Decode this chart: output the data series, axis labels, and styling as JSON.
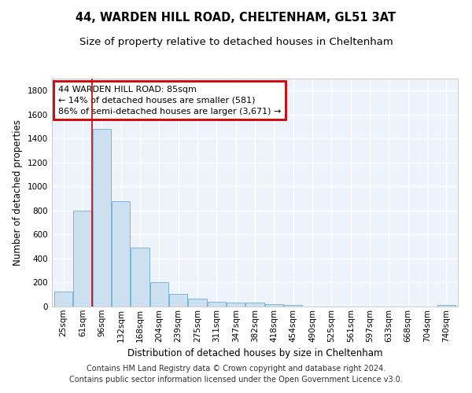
{
  "title1": "44, WARDEN HILL ROAD, CHELTENHAM, GL51 3AT",
  "title2": "Size of property relative to detached houses in Cheltenham",
  "xlabel": "Distribution of detached houses by size in Cheltenham",
  "ylabel": "Number of detached properties",
  "categories": [
    "25sqm",
    "61sqm",
    "96sqm",
    "132sqm",
    "168sqm",
    "204sqm",
    "239sqm",
    "275sqm",
    "311sqm",
    "347sqm",
    "382sqm",
    "418sqm",
    "454sqm",
    "490sqm",
    "525sqm",
    "561sqm",
    "597sqm",
    "633sqm",
    "668sqm",
    "704sqm",
    "740sqm"
  ],
  "values": [
    125,
    800,
    1480,
    880,
    490,
    205,
    105,
    65,
    40,
    35,
    30,
    22,
    15,
    0,
    0,
    0,
    0,
    0,
    0,
    0,
    15
  ],
  "bar_color": "#cce0f0",
  "bar_edge_color": "#6aaed6",
  "annotation_text": "44 WARDEN HILL ROAD: 85sqm\n← 14% of detached houses are smaller (581)\n86% of semi-detached houses are larger (3,671) →",
  "box_color": "#cc0000",
  "ylim": [
    0,
    1900
  ],
  "yticks": [
    0,
    200,
    400,
    600,
    800,
    1000,
    1200,
    1400,
    1600,
    1800
  ],
  "footer1": "Contains HM Land Registry data © Crown copyright and database right 2024.",
  "footer2": "Contains public sector information licensed under the Open Government Licence v3.0.",
  "bg_color": "#eef2fa",
  "grid_color": "#ffffff",
  "title1_fontsize": 10.5,
  "title2_fontsize": 9.5,
  "axis_label_fontsize": 8.5,
  "tick_fontsize": 7.5,
  "annotation_fontsize": 8,
  "footer_fontsize": 7
}
